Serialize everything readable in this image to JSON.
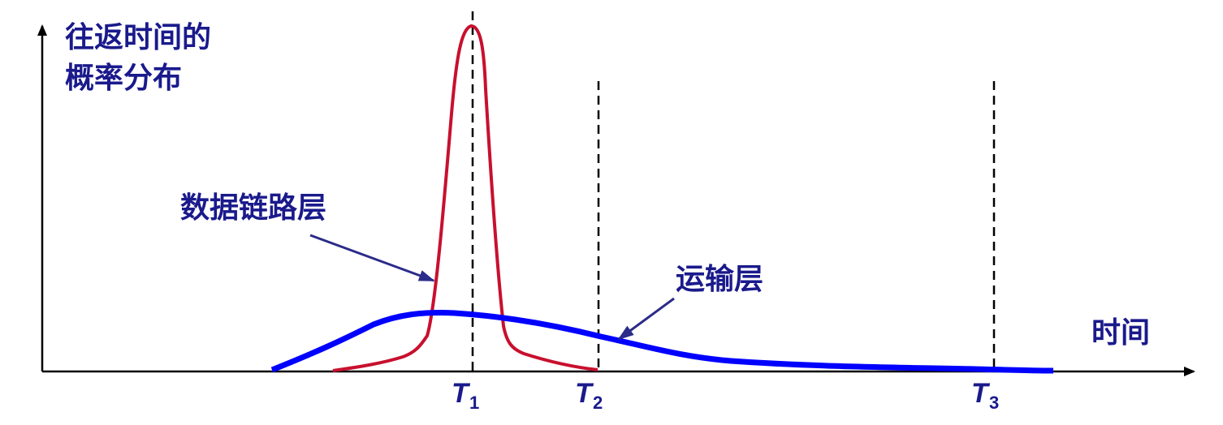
{
  "y_axis_label": [
    "往返时间的",
    "概率分布"
  ],
  "x_axis_label": "时间",
  "curves": [
    {
      "id": "data-link",
      "label": "数据链路层",
      "color": "#c8102e"
    },
    {
      "id": "transport",
      "label": "运输层",
      "color": "#0000ff"
    }
  ],
  "ticks": [
    {
      "symbol": "T",
      "subscript": "1"
    },
    {
      "symbol": "T",
      "subscript": "2"
    },
    {
      "symbol": "T",
      "subscript": "3"
    }
  ],
  "colors": {
    "axis": "#000000",
    "label_text": "#1a1a8c",
    "pointer_arrow": "#2b2b8a"
  }
}
